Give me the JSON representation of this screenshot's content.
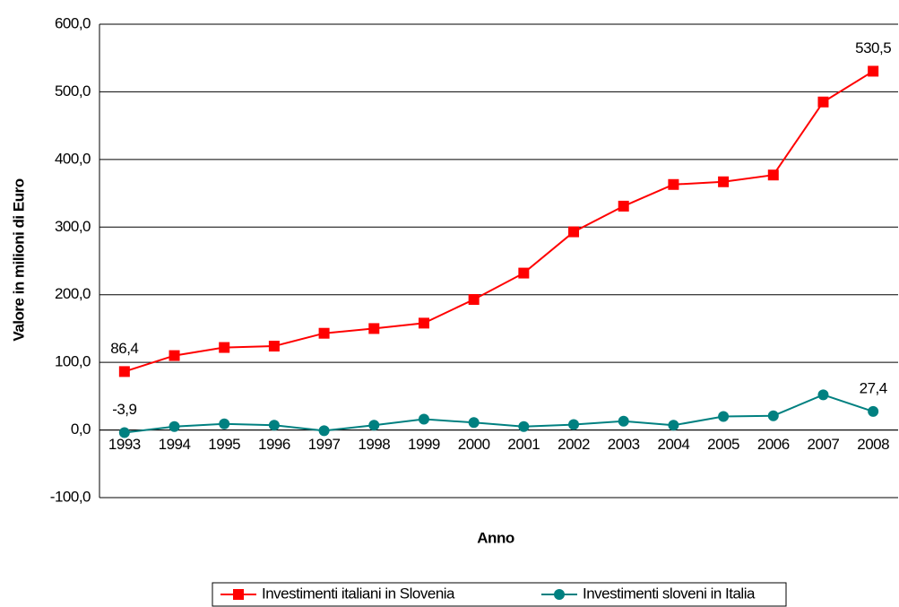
{
  "chart_data": {
    "type": "line",
    "categories": [
      "1993",
      "1994",
      "1995",
      "1996",
      "1997",
      "1998",
      "1999",
      "2000",
      "2001",
      "2002",
      "2003",
      "2004",
      "2005",
      "2006",
      "2007",
      "2008"
    ],
    "series": [
      {
        "name": "Investimenti italiani in Slovenia",
        "color": "#ff0000",
        "marker": "square",
        "values": [
          86.4,
          110,
          122,
          124,
          143,
          150,
          158,
          193,
          232,
          293,
          331,
          363,
          367,
          377,
          485,
          530.5
        ],
        "value_labels": [
          "86,4",
          null,
          null,
          null,
          null,
          null,
          null,
          null,
          null,
          null,
          null,
          null,
          null,
          null,
          null,
          "530,5"
        ]
      },
      {
        "name": "Investimenti sloveni in Italia",
        "color": "#008080",
        "marker": "circle",
        "values": [
          -3.9,
          5,
          9,
          7,
          -1,
          7,
          16,
          11,
          5,
          8,
          13,
          7,
          20,
          21,
          52,
          27.4
        ],
        "value_labels": [
          "-3,9",
          null,
          null,
          null,
          null,
          null,
          null,
          null,
          null,
          null,
          null,
          null,
          null,
          null,
          null,
          "27,4"
        ]
      }
    ],
    "xlabel": "Anno",
    "ylabel": "Valore in milioni di Euro",
    "ylim": [
      -100,
      600
    ],
    "yticks": [
      {
        "value": -100,
        "label": "-100,0"
      },
      {
        "value": 0,
        "label": "0,0"
      },
      {
        "value": 100,
        "label": "100,0"
      },
      {
        "value": 200,
        "label": "200,0"
      },
      {
        "value": 300,
        "label": "300,0"
      },
      {
        "value": 400,
        "label": "400,0"
      },
      {
        "value": 500,
        "label": "500,0"
      },
      {
        "value": 600,
        "label": "600,0"
      }
    ],
    "grid": true,
    "legend": "bottom"
  }
}
